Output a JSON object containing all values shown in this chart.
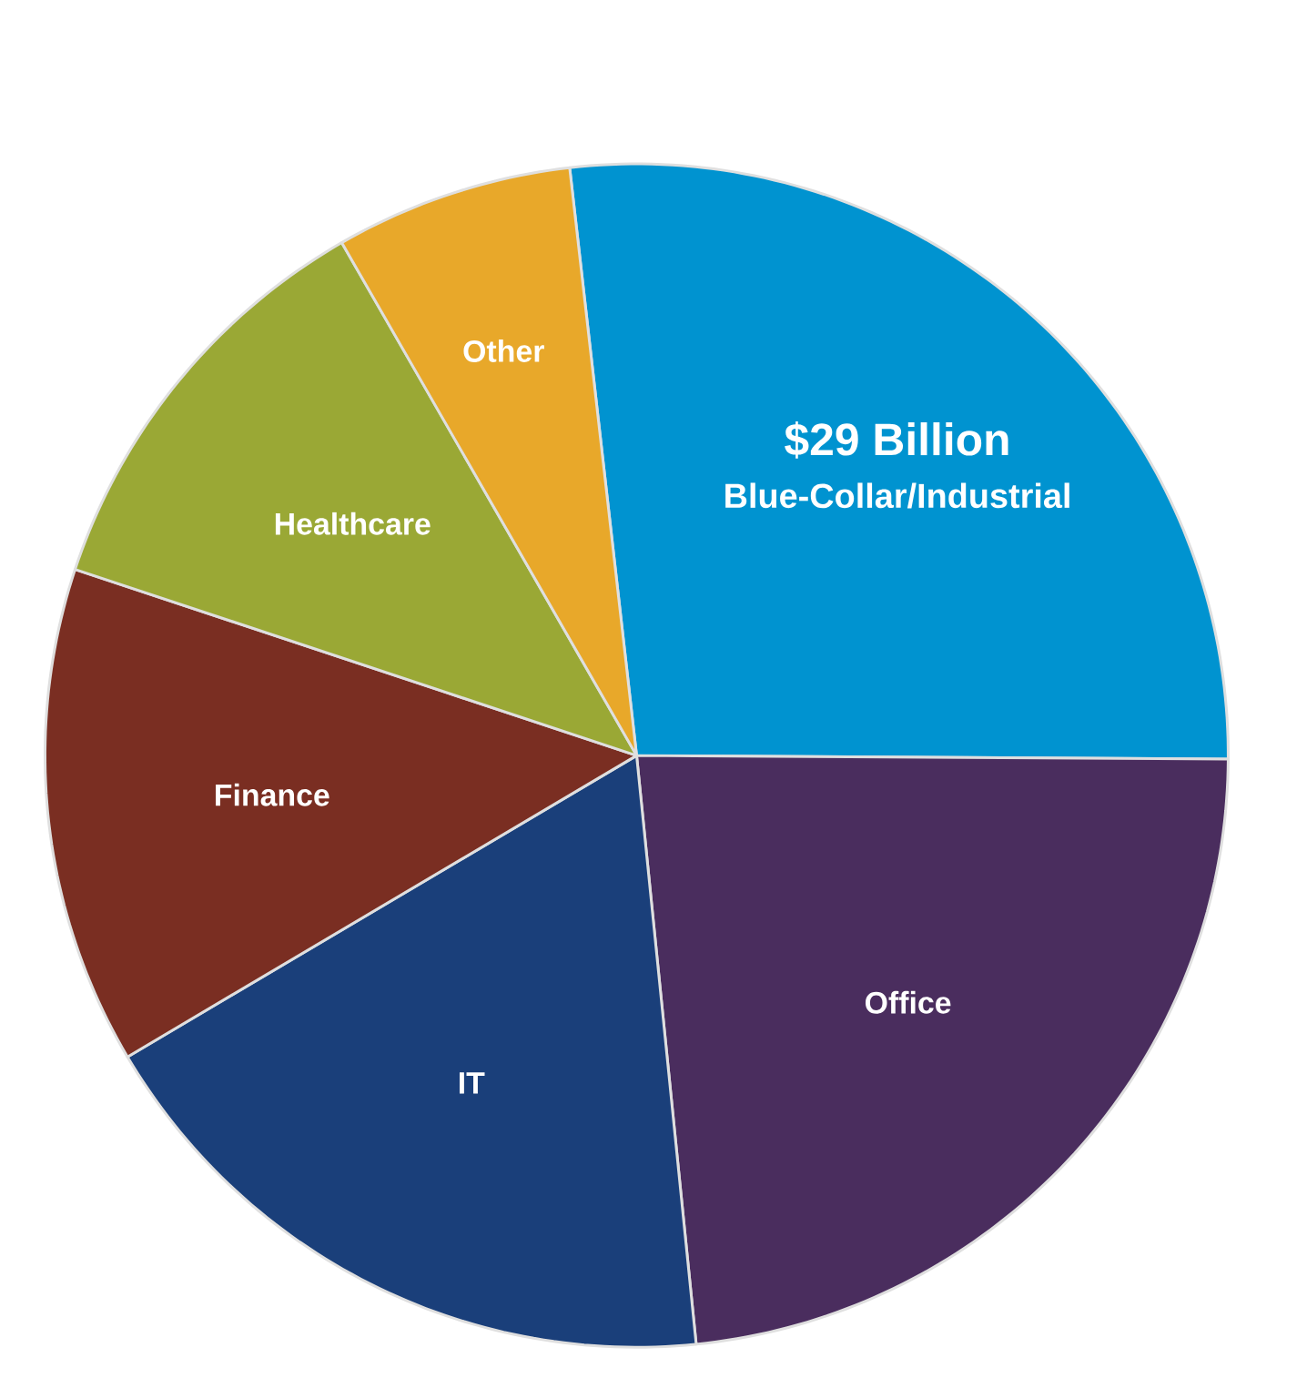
{
  "chart_data": {
    "type": "pie",
    "categories": [
      "Blue-Collar/Industrial",
      "Office",
      "IT",
      "Finance",
      "Healthcare",
      "Other"
    ],
    "values": [
      26.9,
      23.3,
      18.1,
      13.6,
      11.6,
      6.5
    ],
    "colors": [
      "#0093d0",
      "#4a2d5e",
      "#1a3f7a",
      "#7a2e22",
      "#9aa835",
      "#e8a82a"
    ],
    "annotations": [
      "$29 Billion"
    ]
  }
}
